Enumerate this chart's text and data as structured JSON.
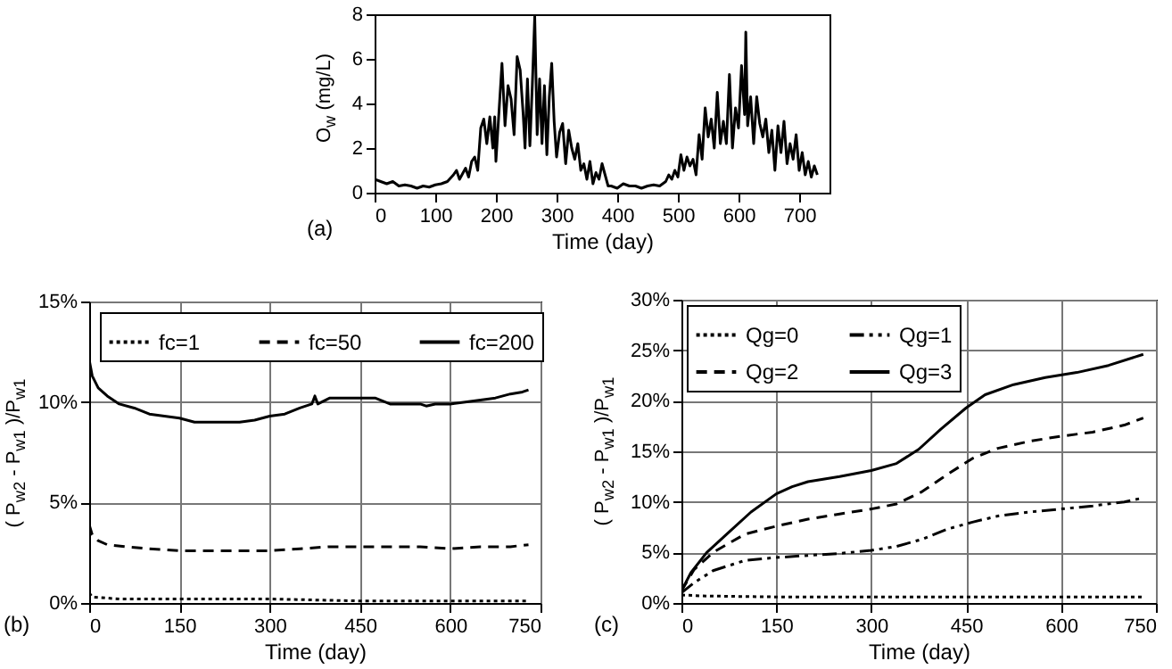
{
  "chart_data": [
    {
      "type": "line",
      "xlabel": "Time (day)",
      "ylabel": "O$_{w}$ (mg/L)",
      "annotations": [
        "(a)"
      ],
      "xlim": [
        0,
        750
      ],
      "xticks": [
        0,
        100,
        200,
        300,
        400,
        500,
        600,
        700
      ],
      "ylim": [
        0,
        8
      ],
      "yticks": [
        0,
        2,
        4,
        6,
        8
      ],
      "grid": false,
      "legend": false,
      "series": [
        {
          "color": "#000000",
          "line_style": "solid",
          "x": [
            0,
            10,
            20,
            30,
            40,
            50,
            60,
            70,
            80,
            90,
            100,
            110,
            120,
            130,
            135,
            140,
            150,
            155,
            160,
            165,
            170,
            175,
            180,
            185,
            190,
            195,
            198,
            200,
            205,
            210,
            215,
            220,
            225,
            230,
            235,
            240,
            245,
            248,
            252,
            256,
            260,
            264,
            268,
            272,
            276,
            280,
            284,
            288,
            292,
            296,
            300,
            305,
            310,
            315,
            320,
            325,
            330,
            335,
            340,
            345,
            350,
            355,
            360,
            365,
            370,
            375,
            380,
            385,
            390,
            400,
            410,
            420,
            430,
            440,
            450,
            460,
            470,
            480,
            485,
            490,
            495,
            500,
            505,
            510,
            515,
            520,
            525,
            530,
            535,
            540,
            545,
            550,
            555,
            560,
            565,
            570,
            575,
            580,
            585,
            590,
            595,
            600,
            605,
            610,
            612,
            615,
            620,
            625,
            630,
            635,
            640,
            645,
            650,
            655,
            660,
            665,
            670,
            675,
            680,
            685,
            690,
            695,
            700,
            705,
            710,
            715,
            720,
            725,
            730
          ],
          "values": [
            0.6,
            0.5,
            0.4,
            0.5,
            0.3,
            0.35,
            0.3,
            0.2,
            0.3,
            0.25,
            0.35,
            0.4,
            0.5,
            0.8,
            1.0,
            0.6,
            1.1,
            0.7,
            1.4,
            1.6,
            1.0,
            2.9,
            3.3,
            2.2,
            3.4,
            2.0,
            3.4,
            1.4,
            3.6,
            5.8,
            3.0,
            4.8,
            4.2,
            2.6,
            6.1,
            5.5,
            3.5,
            2.0,
            5.1,
            2.1,
            4.8,
            7.9,
            2.6,
            5.1,
            2.2,
            4.8,
            1.7,
            4.3,
            5.8,
            3.2,
            1.6,
            2.7,
            3.1,
            1.3,
            2.8,
            2.0,
            1.5,
            2.2,
            1.0,
            1.3,
            0.6,
            1.4,
            0.4,
            0.9,
            0.6,
            1.3,
            0.8,
            0.3,
            0.3,
            0.2,
            0.4,
            0.3,
            0.3,
            0.2,
            0.3,
            0.35,
            0.3,
            0.5,
            0.8,
            0.6,
            1.0,
            0.7,
            1.7,
            1.0,
            1.6,
            1.2,
            1.5,
            0.8,
            2.6,
            1.5,
            3.8,
            2.5,
            3.3,
            2.0,
            4.5,
            2.2,
            3.2,
            2.2,
            5.3,
            2.0,
            3.8,
            2.9,
            5.7,
            3.5,
            7.2,
            3.0,
            4.3,
            2.2,
            4.3,
            3.1,
            2.5,
            3.3,
            1.8,
            2.8,
            1.0,
            3.0,
            1.8,
            3.2,
            1.3,
            2.2,
            1.5,
            2.6,
            1.0,
            1.8,
            0.8,
            1.4,
            0.7,
            1.2,
            0.8
          ]
        }
      ]
    },
    {
      "type": "line",
      "xlabel": "Time (day)",
      "ylabel": "( P$_{w2}$ - P$_{w1}$ )/P$_{w1}$",
      "annotations": [
        "(b)"
      ],
      "xlim": [
        0,
        750
      ],
      "xticks": [
        0,
        150,
        300,
        450,
        600,
        750
      ],
      "ylim": [
        0,
        15
      ],
      "yticks": [
        {
          "value": 0,
          "label": "0%"
        },
        {
          "value": 5,
          "label": "5%"
        },
        {
          "value": 10,
          "label": "10%"
        },
        {
          "value": 15,
          "label": "15%"
        }
      ],
      "grid": true,
      "legend": "top",
      "series": [
        {
          "name": "fc=1",
          "color": "#000000",
          "line_style": "dotted",
          "x": [
            0,
            5,
            50,
            150,
            300,
            450,
            600,
            730
          ],
          "values": [
            0.5,
            0.3,
            0.2,
            0.2,
            0.2,
            0.1,
            0.1,
            0.1
          ]
        },
        {
          "name": "fc=50",
          "color": "#000000",
          "line_style": "dashed",
          "x": [
            0,
            5,
            15,
            30,
            60,
            100,
            150,
            200,
            250,
            300,
            350,
            400,
            450,
            500,
            550,
            600,
            650,
            700,
            730
          ],
          "values": [
            3.9,
            3.4,
            3.1,
            2.9,
            2.8,
            2.7,
            2.6,
            2.6,
            2.6,
            2.6,
            2.7,
            2.8,
            2.8,
            2.8,
            2.8,
            2.7,
            2.8,
            2.8,
            2.9
          ]
        },
        {
          "name": "fc=200",
          "color": "#000000",
          "line_style": "solid",
          "x": [
            0,
            5,
            15,
            30,
            50,
            75,
            100,
            125,
            150,
            175,
            200,
            225,
            250,
            275,
            300,
            325,
            350,
            370,
            375,
            380,
            400,
            425,
            450,
            475,
            500,
            525,
            550,
            560,
            575,
            600,
            625,
            650,
            675,
            700,
            720,
            730
          ],
          "values": [
            12.1,
            11.3,
            10.7,
            10.3,
            9.9,
            9.7,
            9.4,
            9.3,
            9.2,
            9.0,
            9.0,
            9.0,
            9.0,
            9.1,
            9.3,
            9.4,
            9.7,
            9.9,
            10.3,
            9.9,
            10.2,
            10.2,
            10.2,
            10.2,
            9.9,
            9.9,
            9.9,
            9.8,
            9.9,
            9.9,
            10.0,
            10.1,
            10.2,
            10.4,
            10.5,
            10.6
          ]
        }
      ]
    },
    {
      "type": "line",
      "xlabel": "Time (day)",
      "ylabel": "( P$_{w2}$ - P$_{w1}$ )/P$_{w1}$",
      "annotations": [
        "(c)"
      ],
      "xlim": [
        0,
        750
      ],
      "xticks": [
        0,
        150,
        300,
        450,
        600,
        750
      ],
      "ylim": [
        0,
        30
      ],
      "yticks": [
        {
          "value": 0,
          "label": "0%"
        },
        {
          "value": 5,
          "label": "5%"
        },
        {
          "value": 10,
          "label": "10%"
        },
        {
          "value": 15,
          "label": "15%"
        },
        {
          "value": 20,
          "label": "20%"
        },
        {
          "value": 25,
          "label": "25%"
        },
        {
          "value": 30,
          "label": "30%"
        }
      ],
      "grid": true,
      "legend": "top left",
      "series": [
        {
          "name": "Qg=0",
          "color": "#000000",
          "line_style": "dotted",
          "x": [
            0,
            30,
            150,
            300,
            450,
            600,
            730
          ],
          "values": [
            0.8,
            0.7,
            0.6,
            0.6,
            0.6,
            0.6,
            0.6
          ]
        },
        {
          "name": "Qg=1",
          "color": "#000000",
          "line_style": "dashdot",
          "x": [
            0,
            20,
            50,
            100,
            150,
            200,
            250,
            300,
            340,
            380,
            420,
            460,
            500,
            550,
            600,
            650,
            700,
            730
          ],
          "values": [
            1.0,
            2.0,
            3.2,
            4.2,
            4.5,
            4.7,
            4.9,
            5.2,
            5.6,
            6.3,
            7.3,
            8.0,
            8.6,
            9.0,
            9.3,
            9.6,
            10.0,
            10.4
          ]
        },
        {
          "name": "Qg=2",
          "color": "#000000",
          "line_style": "dashed",
          "x": [
            0,
            20,
            50,
            100,
            150,
            200,
            250,
            300,
            340,
            380,
            420,
            460,
            500,
            550,
            600,
            650,
            700,
            730
          ],
          "values": [
            1.2,
            3.3,
            5.0,
            6.8,
            7.6,
            8.3,
            8.8,
            9.3,
            9.8,
            11.0,
            12.7,
            14.3,
            15.3,
            16.0,
            16.5,
            16.9,
            17.6,
            18.3
          ]
        },
        {
          "name": "Qg=3",
          "color": "#000000",
          "line_style": "solid",
          "x": [
            0,
            15,
            40,
            75,
            110,
            150,
            175,
            200,
            250,
            300,
            340,
            375,
            410,
            450,
            480,
            525,
            575,
            625,
            675,
            730
          ],
          "values": [
            1.2,
            3.0,
            5.0,
            7.0,
            9.0,
            10.8,
            11.5,
            12.0,
            12.5,
            13.1,
            13.8,
            15.2,
            17.2,
            19.3,
            20.6,
            21.6,
            22.3,
            22.8,
            23.5,
            24.6
          ]
        }
      ]
    }
  ]
}
